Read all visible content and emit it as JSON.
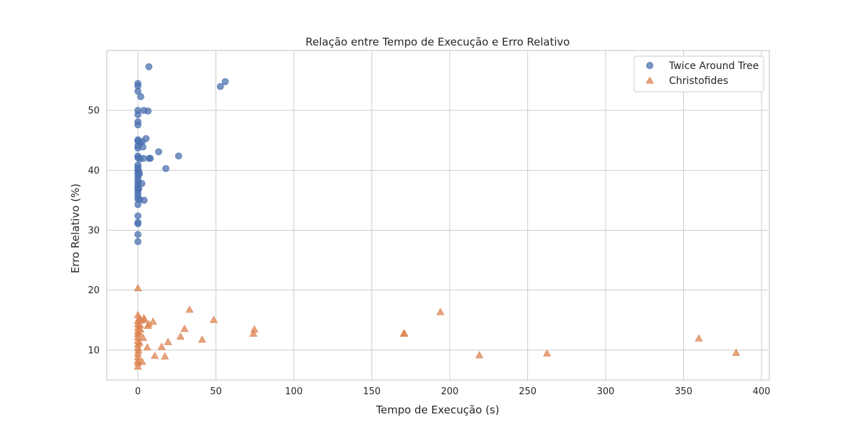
{
  "chart_data": {
    "type": "scatter",
    "title": "Relação entre Tempo de Execução e Erro Relativo",
    "xlabel": "Tempo de Execução (s)",
    "ylabel": "Erro Relativo (%)",
    "xlim": [
      -20,
      405
    ],
    "ylim": [
      5,
      60
    ],
    "xticks": [
      0,
      50,
      100,
      150,
      200,
      250,
      300,
      350,
      400
    ],
    "yticks": [
      10,
      20,
      30,
      40,
      50
    ],
    "grid": true,
    "legend_position": "top-right",
    "series": [
      {
        "name": "Twice Around Tree",
        "marker": "circle",
        "color": "#4c72b0",
        "points": [
          {
            "x": 0.0,
            "y": 28.1
          },
          {
            "x": 0.0,
            "y": 29.3
          },
          {
            "x": 0.0,
            "y": 31.1
          },
          {
            "x": 0.0,
            "y": 31.3
          },
          {
            "x": 0.0,
            "y": 32.4
          },
          {
            "x": 0.0,
            "y": 34.3
          },
          {
            "x": 0.0,
            "y": 35.2
          },
          {
            "x": 0.0,
            "y": 35.7
          },
          {
            "x": 0.0,
            "y": 36.2
          },
          {
            "x": 0.0,
            "y": 36.7
          },
          {
            "x": 0.0,
            "y": 37.1
          },
          {
            "x": 0.0,
            "y": 37.6
          },
          {
            "x": 0.0,
            "y": 38.1
          },
          {
            "x": 0.0,
            "y": 38.6
          },
          {
            "x": 0.0,
            "y": 39.1
          },
          {
            "x": 0.0,
            "y": 39.6
          },
          {
            "x": 0.0,
            "y": 40.1
          },
          {
            "x": 0.0,
            "y": 40.5
          },
          {
            "x": 0.0,
            "y": 40.9
          },
          {
            "x": 0.0,
            "y": 42.1
          },
          {
            "x": 0.0,
            "y": 42.4
          },
          {
            "x": 0.0,
            "y": 43.7
          },
          {
            "x": 0.0,
            "y": 44.1
          },
          {
            "x": 0.0,
            "y": 44.9
          },
          {
            "x": 0.0,
            "y": 45.1
          },
          {
            "x": 0.0,
            "y": 47.6
          },
          {
            "x": 0.0,
            "y": 48.1
          },
          {
            "x": 0.0,
            "y": 49.3
          },
          {
            "x": 0.0,
            "y": 50.0
          },
          {
            "x": 0.0,
            "y": 53.2
          },
          {
            "x": 0.0,
            "y": 54.1
          },
          {
            "x": 0.0,
            "y": 54.5
          },
          {
            "x": 0.5,
            "y": 36.9
          },
          {
            "x": 0.6,
            "y": 39.8
          },
          {
            "x": 1.0,
            "y": 39.4
          },
          {
            "x": 1.2,
            "y": 35.1
          },
          {
            "x": 1.3,
            "y": 41.9
          },
          {
            "x": 1.5,
            "y": 44.6
          },
          {
            "x": 1.8,
            "y": 52.3
          },
          {
            "x": 2.5,
            "y": 37.8
          },
          {
            "x": 2.8,
            "y": 44.8
          },
          {
            "x": 3.2,
            "y": 43.9
          },
          {
            "x": 3.6,
            "y": 42.0
          },
          {
            "x": 3.8,
            "y": 50.0
          },
          {
            "x": 4.0,
            "y": 35.0
          },
          {
            "x": 5.2,
            "y": 45.3
          },
          {
            "x": 6.5,
            "y": 49.9
          },
          {
            "x": 7.0,
            "y": 57.3
          },
          {
            "x": 7.3,
            "y": 42.0
          },
          {
            "x": 7.9,
            "y": 42.0
          },
          {
            "x": 13.3,
            "y": 43.1
          },
          {
            "x": 17.9,
            "y": 40.3
          },
          {
            "x": 26.1,
            "y": 42.4
          },
          {
            "x": 52.9,
            "y": 54.0
          },
          {
            "x": 56.0,
            "y": 54.8
          }
        ]
      },
      {
        "name": "Christofides",
        "marker": "triangle",
        "color": "#dd8452",
        "points": [
          {
            "x": 0.0,
            "y": 7.2
          },
          {
            "x": 0.0,
            "y": 7.8
          },
          {
            "x": 0.0,
            "y": 8.2
          },
          {
            "x": 0.0,
            "y": 8.8
          },
          {
            "x": 0.0,
            "y": 9.4
          },
          {
            "x": 0.0,
            "y": 10.3
          },
          {
            "x": 0.0,
            "y": 10.9
          },
          {
            "x": 0.0,
            "y": 11.5
          },
          {
            "x": 0.0,
            "y": 12.1
          },
          {
            "x": 0.0,
            "y": 12.6
          },
          {
            "x": 0.0,
            "y": 13.1
          },
          {
            "x": 0.0,
            "y": 13.7
          },
          {
            "x": 0.0,
            "y": 14.3
          },
          {
            "x": 0.0,
            "y": 14.8
          },
          {
            "x": 0.0,
            "y": 15.8
          },
          {
            "x": 0.0,
            "y": 20.3
          },
          {
            "x": 0.4,
            "y": 9.9
          },
          {
            "x": 0.6,
            "y": 12.9
          },
          {
            "x": 0.8,
            "y": 15.3
          },
          {
            "x": 1.0,
            "y": 11.2
          },
          {
            "x": 1.4,
            "y": 14.1
          },
          {
            "x": 1.6,
            "y": 13.4
          },
          {
            "x": 2.0,
            "y": 14.9
          },
          {
            "x": 2.7,
            "y": 8.0
          },
          {
            "x": 3.3,
            "y": 12.0
          },
          {
            "x": 3.8,
            "y": 15.3
          },
          {
            "x": 4.2,
            "y": 15.0
          },
          {
            "x": 6.0,
            "y": 10.4
          },
          {
            "x": 6.3,
            "y": 14.0
          },
          {
            "x": 7.0,
            "y": 14.3
          },
          {
            "x": 9.7,
            "y": 14.7
          },
          {
            "x": 10.8,
            "y": 9.0
          },
          {
            "x": 15.2,
            "y": 10.5
          },
          {
            "x": 17.3,
            "y": 8.9
          },
          {
            "x": 19.3,
            "y": 11.3
          },
          {
            "x": 27.3,
            "y": 12.2
          },
          {
            "x": 29.9,
            "y": 13.5
          },
          {
            "x": 33.1,
            "y": 16.7
          },
          {
            "x": 41.2,
            "y": 11.7
          },
          {
            "x": 48.6,
            "y": 15.0
          },
          {
            "x": 74.1,
            "y": 12.7
          },
          {
            "x": 74.7,
            "y": 13.4
          },
          {
            "x": 170.5,
            "y": 12.7
          },
          {
            "x": 171.0,
            "y": 12.7
          },
          {
            "x": 194.0,
            "y": 16.3
          },
          {
            "x": 219.0,
            "y": 9.1
          },
          {
            "x": 262.4,
            "y": 9.4
          },
          {
            "x": 359.8,
            "y": 11.9
          },
          {
            "x": 383.7,
            "y": 9.5
          }
        ]
      }
    ]
  }
}
